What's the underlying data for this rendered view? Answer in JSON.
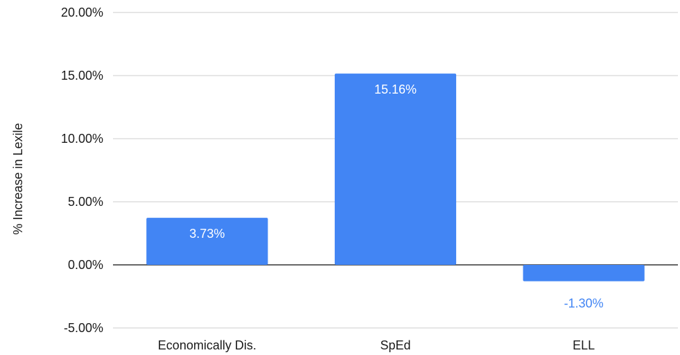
{
  "chart_data": {
    "type": "bar",
    "categories": [
      "Economically Dis.",
      "SpEd",
      "ELL"
    ],
    "values": [
      3.73,
      15.16,
      -1.3
    ],
    "data_labels": [
      "3.73%",
      "15.16%",
      "-1.30%"
    ],
    "ylabel": "% Increase in Lexile",
    "ylim": [
      -5,
      20
    ],
    "yticks": [
      20,
      15,
      10,
      5,
      0,
      -5
    ],
    "ytick_labels": [
      "20.00%",
      "15.00%",
      "10.00%",
      "5.00%",
      "0.00%",
      "-5.00%"
    ],
    "grid": true,
    "legend": "none",
    "bar_color": "#4285f4",
    "label_inside_color": "#ffffff",
    "label_outside_color": "#4285f4"
  }
}
